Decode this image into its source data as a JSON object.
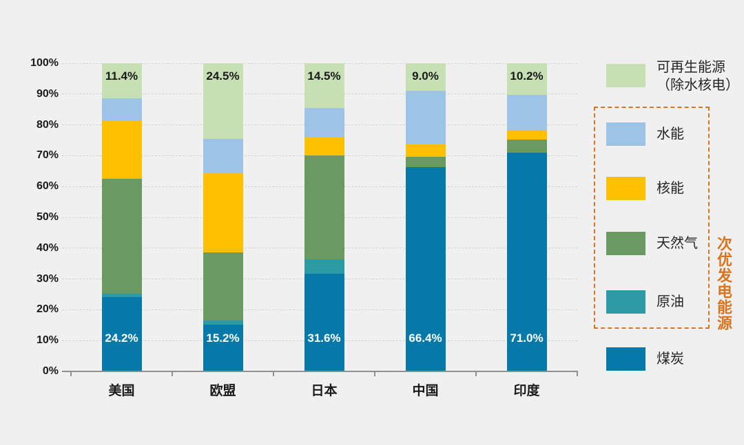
{
  "background_color": "#f0f0f0",
  "chart_data": {
    "type": "bar",
    "variant": "stacked-100-percent",
    "title": "",
    "xlabel": "",
    "ylabel": "",
    "unit": "%",
    "grid": {
      "horizontal": true,
      "style": "dashed",
      "color": "#d2d2d2"
    },
    "legend_position": "right",
    "categories": [
      "美国",
      "欧盟",
      "日本",
      "中国",
      "印度"
    ],
    "category_keys": [
      "usa",
      "eu",
      "japan",
      "china",
      "india"
    ],
    "y_axis": {
      "min": 0,
      "max": 100,
      "tick_step": 10,
      "tick_labels": [
        "0%",
        "10%",
        "20%",
        "30%",
        "40%",
        "50%",
        "60%",
        "70%",
        "80%",
        "90%",
        "100%"
      ]
    },
    "series": [
      {
        "key": "coal",
        "name": "煤炭",
        "color": "#0779a9",
        "values": [
          24.2,
          15.2,
          31.6,
          66.4,
          71.0
        ],
        "value_labels": [
          "24.2%",
          "15.2%",
          "31.6%",
          "66.4%",
          "71.0%"
        ],
        "label_position": "bottom",
        "label_color": "#ffffff"
      },
      {
        "key": "crude-oil",
        "name": "原油",
        "color": "#2d9ba6",
        "values": [
          1.1,
          1.4,
          4.7,
          0,
          0
        ]
      },
      {
        "key": "natural-gas",
        "name": "天然气",
        "color": "#6a9a62",
        "values": [
          37.1,
          22.0,
          33.8,
          3.3,
          4.3
        ]
      },
      {
        "key": "nuclear",
        "name": "核能",
        "color": "#fec101",
        "values": [
          19.0,
          25.6,
          6.1,
          4.1,
          2.8
        ]
      },
      {
        "key": "hydro",
        "name": "水能",
        "color": "#9dc3e6",
        "values": [
          7.2,
          11.3,
          9.3,
          17.2,
          11.7
        ]
      },
      {
        "key": "renewables",
        "name": "可再生能源（除水核电）",
        "color": "#c6e0b4",
        "values": [
          11.4,
          24.5,
          14.5,
          9.0,
          10.2
        ],
        "value_labels": [
          "11.4%",
          "24.5%",
          "14.5%",
          "9.0%",
          "10.2%"
        ],
        "label_position": "top",
        "label_color": "#1a1a1a"
      }
    ]
  },
  "legend": {
    "items": [
      {
        "key": "renewables",
        "label": "可再生能源（除水核电）",
        "lines": [
          "可再生能源",
          "（除水核电）"
        ],
        "color": "#c6e0b4"
      },
      {
        "key": "hydro",
        "label": "水能",
        "color": "#9dc3e6"
      },
      {
        "key": "nuclear",
        "label": "核能",
        "color": "#fec101"
      },
      {
        "key": "natural-gas",
        "label": "天然气",
        "color": "#6a9a62"
      },
      {
        "key": "crude-oil",
        "label": "原油",
        "color": "#2d9ba6"
      },
      {
        "key": "coal",
        "label": "煤炭",
        "color": "#0779a9"
      }
    ],
    "group_box": {
      "label": "次优发电能源",
      "border_color": "#d9731e",
      "label_color": "#d9731e",
      "contains": [
        "水能",
        "核能",
        "天然气",
        "原油"
      ]
    }
  }
}
